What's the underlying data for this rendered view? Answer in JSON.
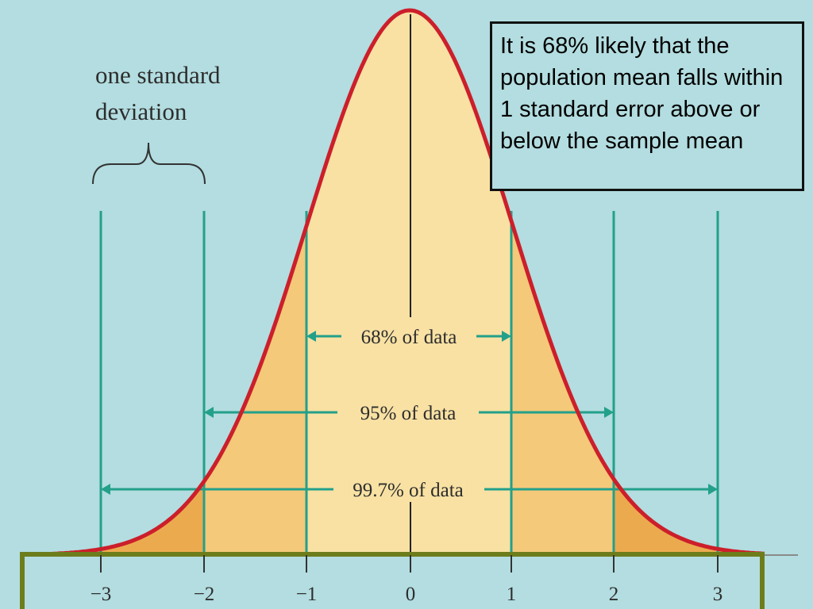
{
  "diagram": {
    "std_dev_label": [
      "one standard",
      "deviation"
    ],
    "callout_text": "It is 68% likely that the population mean falls within 1 standard error above or below the sample mean",
    "ranges": [
      {
        "label": "68% of data",
        "from": -1,
        "to": 1
      },
      {
        "label": "95% of data",
        "from": -2,
        "to": 2
      },
      {
        "label": "99.7% of data",
        "from": -3,
        "to": 3
      }
    ],
    "ticks": [
      "−3",
      "−2",
      "−1",
      "0",
      "1",
      "2",
      "3"
    ],
    "colors": {
      "background": "#b3dde0",
      "curve": "#cc1f2b",
      "fill_inner": "#f8e1a3",
      "fill_middle": "#f4c979",
      "fill_outer": "#ecaa4f",
      "guide_lines": "#23a08a",
      "axis": "#6d7d1c"
    }
  }
}
